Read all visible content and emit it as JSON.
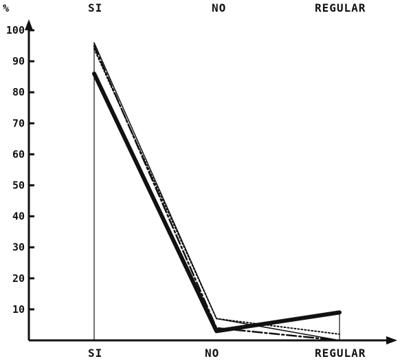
{
  "chart_data": {
    "type": "line",
    "ylabel": "%",
    "categories": [
      "SI",
      "NO",
      "REGULAR"
    ],
    "top_labels": [
      "SI",
      "NO",
      "REGULAR"
    ],
    "yticks": [
      10,
      20,
      30,
      40,
      50,
      60,
      70,
      80,
      90,
      100
    ],
    "ylim": [
      0,
      100
    ],
    "grid": false,
    "legend": "none",
    "series": [
      {
        "values": [
          86,
          3,
          9
        ],
        "style": "thick-solid",
        "color": "#111111"
      },
      {
        "values": [
          96,
          7,
          0
        ],
        "style": "thin-solid",
        "color": "#111111"
      },
      {
        "values": [
          95,
          4,
          0
        ],
        "style": "dash-dot",
        "color": "#111111"
      },
      {
        "values": [
          94,
          7,
          2
        ],
        "style": "dotted",
        "color": "#111111"
      }
    ]
  }
}
